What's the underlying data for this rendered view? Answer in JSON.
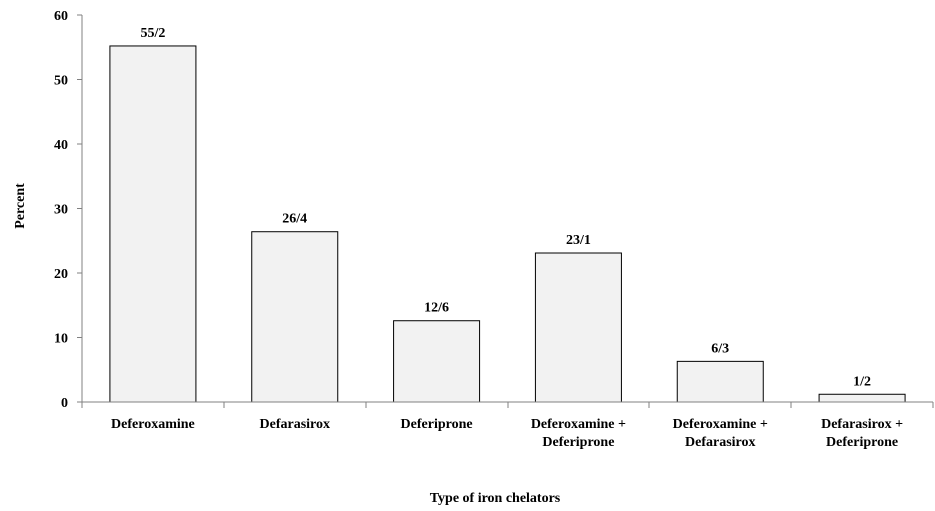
{
  "chart_data": {
    "type": "bar",
    "categories": [
      [
        "Deferoxamine"
      ],
      [
        "Defarasirox"
      ],
      [
        "Deferiprone"
      ],
      [
        "Deferoxamine +",
        "Deferiprone"
      ],
      [
        "Deferoxamine +",
        "Defarasirox"
      ],
      [
        "Defarasirox +",
        "Deferiprone"
      ]
    ],
    "values": [
      55.2,
      26.4,
      12.6,
      23.1,
      6.3,
      1.2
    ],
    "data_labels": [
      "55/2",
      "26/4",
      "12/6",
      "23/1",
      "6/3",
      "1/2"
    ],
    "xlabel": "Type of iron chelators",
    "ylabel": "Percent",
    "ylim": [
      0,
      60
    ],
    "yticks": [
      0,
      10,
      20,
      30,
      40,
      50,
      60
    ],
    "grid": false,
    "colors": {
      "bar_fill": "#f2f2f2",
      "bar_stroke": "#000000",
      "axis": "#808080"
    }
  }
}
